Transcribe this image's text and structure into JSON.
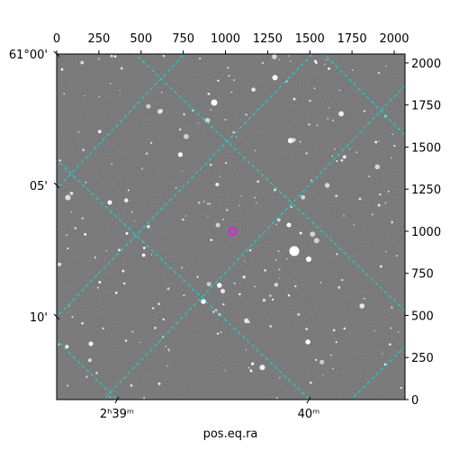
{
  "chart_data": {
    "type": "image",
    "xlabel": "pos.eq.ra",
    "xlim": [
      0,
      2064
    ],
    "ylim": [
      0,
      2053
    ],
    "xticks": [
      0,
      250,
      500,
      750,
      1000,
      1250,
      1500,
      1750,
      2000
    ],
    "yticks": [
      0,
      250,
      500,
      750,
      1000,
      1250,
      1500,
      1750,
      2000
    ],
    "ra_ticks": [
      {
        "value": 357,
        "label": "2ʰ39ᵐ"
      },
      {
        "value": 1493,
        "label": "40ᵐ"
      }
    ],
    "dec_ticks": [
      {
        "value": 2053,
        "label": "61°00'"
      },
      {
        "value": 1273,
        "label": "05'"
      },
      {
        "value": 492,
        "label": "10'"
      }
    ],
    "marker": {
      "x": 1042,
      "y": 1000,
      "color": "#ff00ff"
    },
    "grid_color": "#00e5e5"
  }
}
